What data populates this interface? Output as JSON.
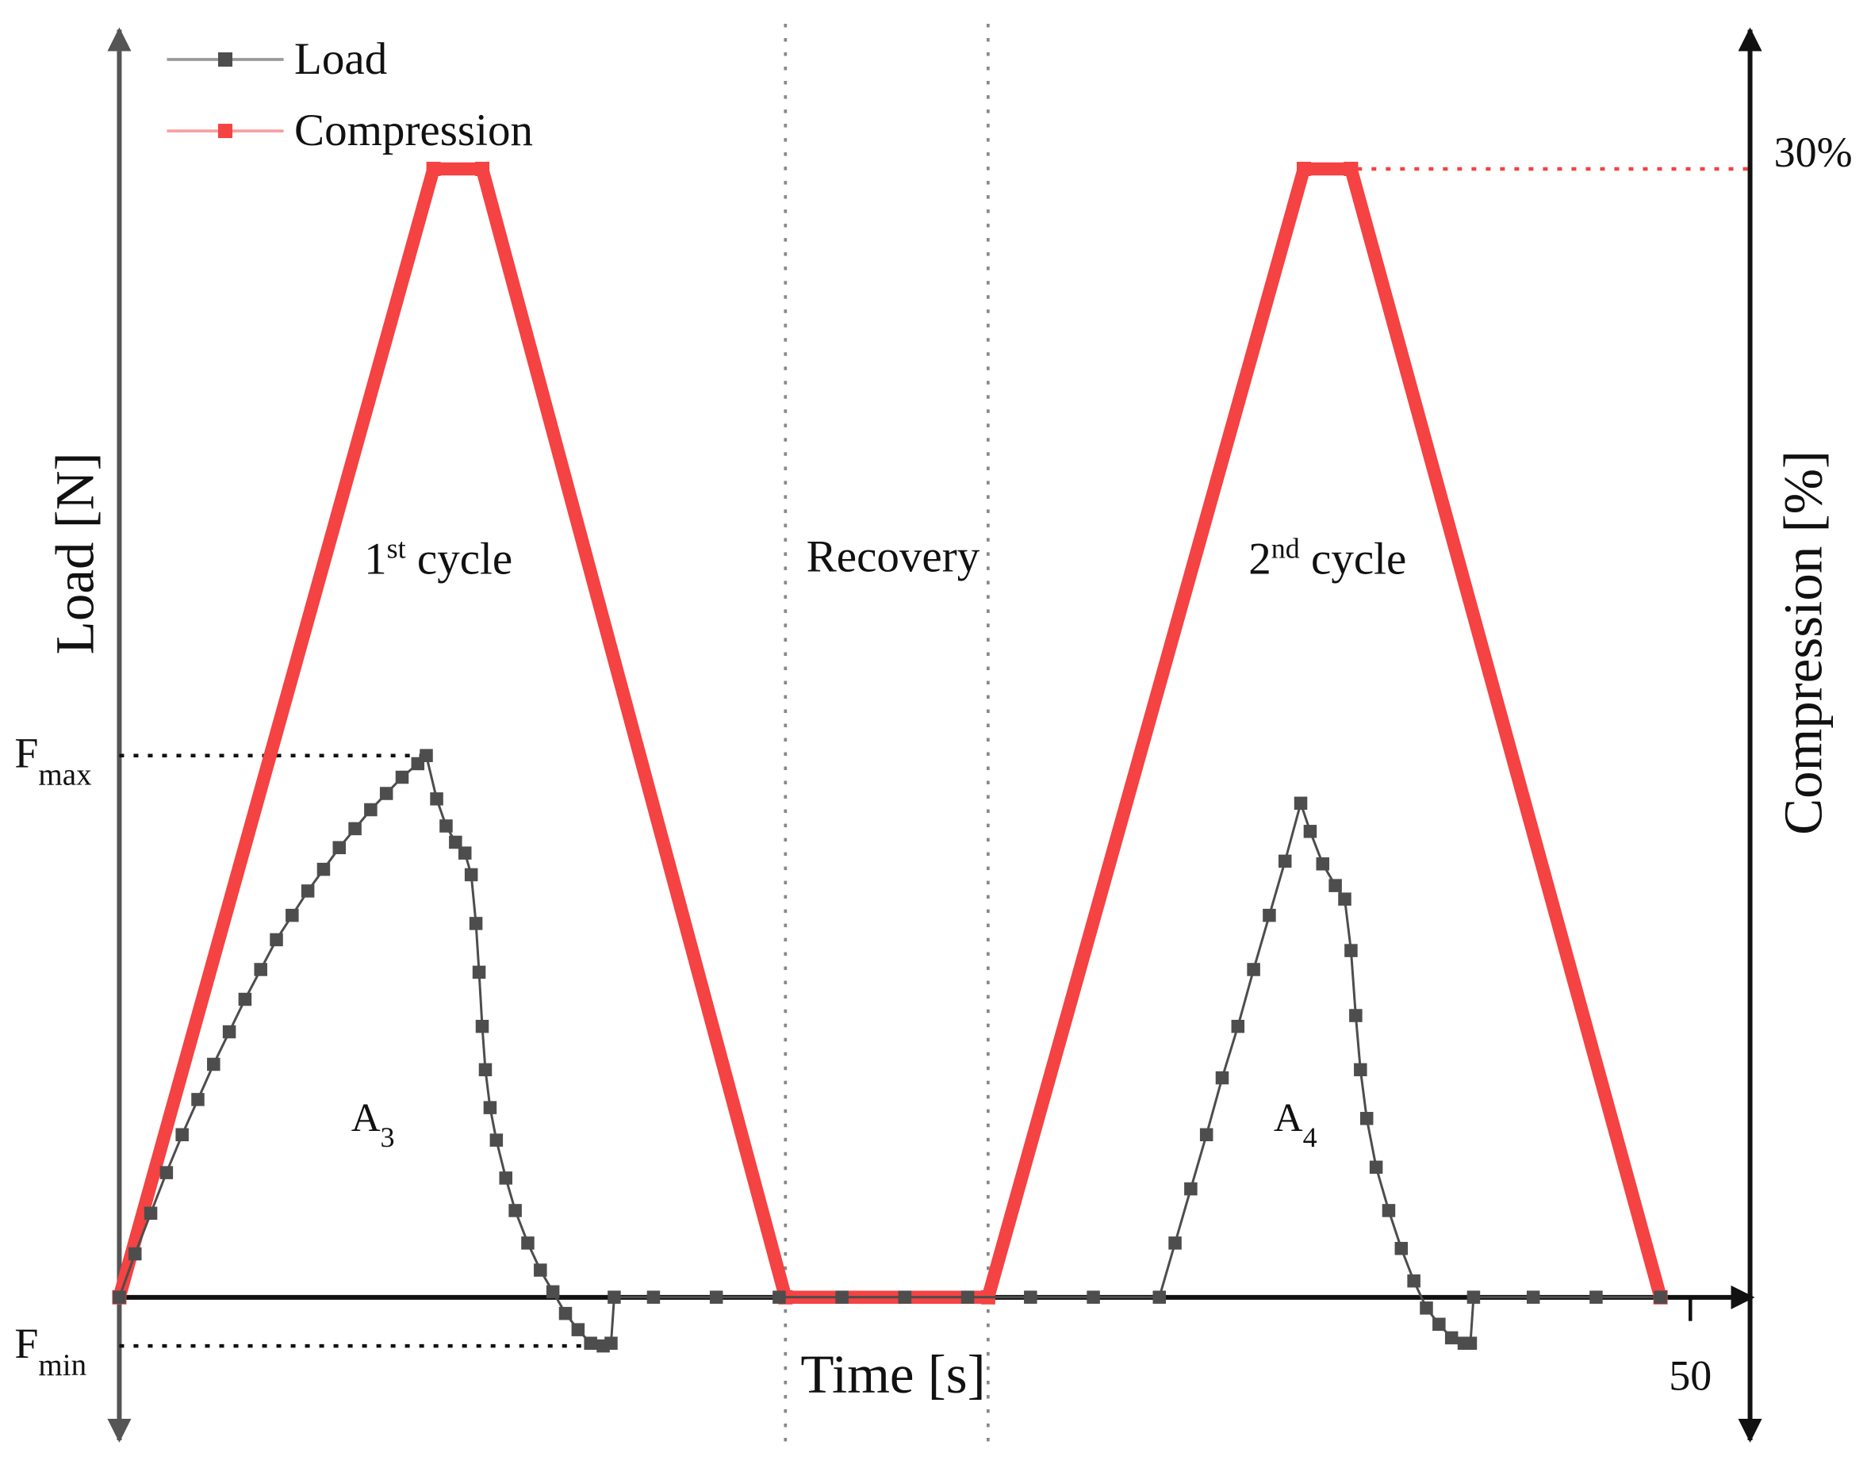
{
  "chart_data": {
    "type": "line",
    "x_label": "Time [s]",
    "y_label": "Load [N]",
    "y2_label": "Compression [%]",
    "xlim": [
      0,
      51.9
    ],
    "xticks": [
      50
    ],
    "ylim": [
      -2.64,
      23.4
    ],
    "yticks": [
      {
        "value": 10,
        "label": "F",
        "sub": "max"
      },
      {
        "value": -0.9,
        "label": "F",
        "sub": "min"
      }
    ],
    "y2lim": [
      -3.8,
      33.7
    ],
    "y2ticks": [
      {
        "value": 30,
        "label": "30%"
      }
    ],
    "vlines": [
      21.2,
      27.65
    ],
    "series": [
      {
        "name": "Load",
        "color": "#4d4d4d",
        "x": [
          0,
          0.5,
          1,
          1.5,
          2,
          2.5,
          3,
          3.5,
          4,
          4.5,
          5,
          5.5,
          6,
          6.5,
          7,
          7.5,
          8,
          8.5,
          9,
          9.5,
          9.77,
          10.1,
          10.4,
          10.7,
          11.0,
          11.2,
          11.35,
          11.45,
          11.55,
          11.65,
          11.8,
          12.0,
          12.3,
          12.6,
          13.0,
          13.4,
          13.8,
          14.2,
          14.6,
          15.0,
          15.4,
          15.65,
          15.75,
          17,
          19,
          21,
          23,
          25,
          27,
          29,
          31,
          33.1,
          33.6,
          34.1,
          34.6,
          35.1,
          35.6,
          36.1,
          36.6,
          37.1,
          37.6,
          37.9,
          38.3,
          38.7,
          39.0,
          39.2,
          39.35,
          39.5,
          39.7,
          40.0,
          40.4,
          40.8,
          41.2,
          41.6,
          42.0,
          42.4,
          42.8,
          43.0,
          43.1,
          45,
          47,
          49.05
        ],
        "values": [
          0,
          0.8,
          1.55,
          2.3,
          3.0,
          3.65,
          4.3,
          4.9,
          5.5,
          6.05,
          6.6,
          7.05,
          7.5,
          7.9,
          8.3,
          8.65,
          9.0,
          9.3,
          9.6,
          9.85,
          10,
          9.2,
          8.7,
          8.4,
          8.2,
          7.8,
          6.9,
          6.0,
          5.0,
          4.2,
          3.5,
          2.9,
          2.2,
          1.6,
          1.0,
          0.5,
          0.1,
          -0.3,
          -0.6,
          -0.85,
          -0.9,
          -0.85,
          0,
          0,
          0,
          0,
          0,
          0,
          0,
          0,
          0,
          0,
          1.0,
          2.0,
          3.0,
          4.05,
          5.0,
          6.05,
          7.05,
          8.05,
          9.12,
          8.6,
          8.0,
          7.6,
          7.35,
          6.4,
          5.2,
          4.2,
          3.3,
          2.4,
          1.6,
          0.9,
          0.3,
          -0.2,
          -0.5,
          -0.75,
          -0.85,
          -0.85,
          0,
          0,
          0,
          0
        ]
      },
      {
        "name": "Compression",
        "color": "#f54242",
        "axis": "y2",
        "x": [
          0,
          10,
          11.55,
          21.2,
          27.65,
          37.7,
          39.2,
          49.05
        ],
        "values": [
          0,
          30,
          30,
          0,
          0,
          30,
          30,
          0
        ]
      }
    ],
    "annotations": [
      {
        "text": "1",
        "sup": "st",
        "rest": " cycle"
      },
      {
        "text": "Recovery"
      },
      {
        "text": "2",
        "sup": "nd",
        "rest": " cycle"
      },
      {
        "text": "A",
        "sub": "3"
      },
      {
        "text": "A",
        "sub": "4"
      }
    ]
  }
}
